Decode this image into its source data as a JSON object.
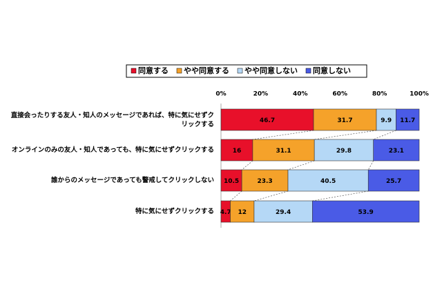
{
  "chart_data": {
    "type": "stacked-bar-horizontal",
    "categories": [
      "直接会ったりする友人・知人のメッセージであれば、特に気にせずクリックする",
      "オンラインのみの友人・知人であっても、特に気にせずクリックする",
      "誰からのメッセージであっても警戒してクリックしない",
      "特に気にせずクリックする"
    ],
    "series": [
      {
        "name": "同意する",
        "color": "#e8102a",
        "values": [
          46.7,
          16,
          10.5,
          4.7
        ]
      },
      {
        "name": "やや同意する",
        "color": "#f5a22a",
        "values": [
          31.7,
          31.1,
          23.3,
          12
        ]
      },
      {
        "name": "やや同意しない",
        "color": "#b5d8f6",
        "values": [
          9.9,
          29.8,
          40.5,
          29.4
        ]
      },
      {
        "name": "同意しない",
        "color": "#4a5be6",
        "values": [
          11.7,
          23.1,
          25.7,
          53.9
        ]
      }
    ],
    "xlim": [
      0,
      100
    ],
    "xticks": [
      {
        "value": 0,
        "label": "0%"
      },
      {
        "value": 20,
        "label": "20%"
      },
      {
        "value": 40,
        "label": "40%"
      },
      {
        "value": 60,
        "label": "60%"
      },
      {
        "value": 80,
        "label": "80%"
      },
      {
        "value": 100,
        "label": "100%"
      }
    ],
    "legend": "top"
  }
}
